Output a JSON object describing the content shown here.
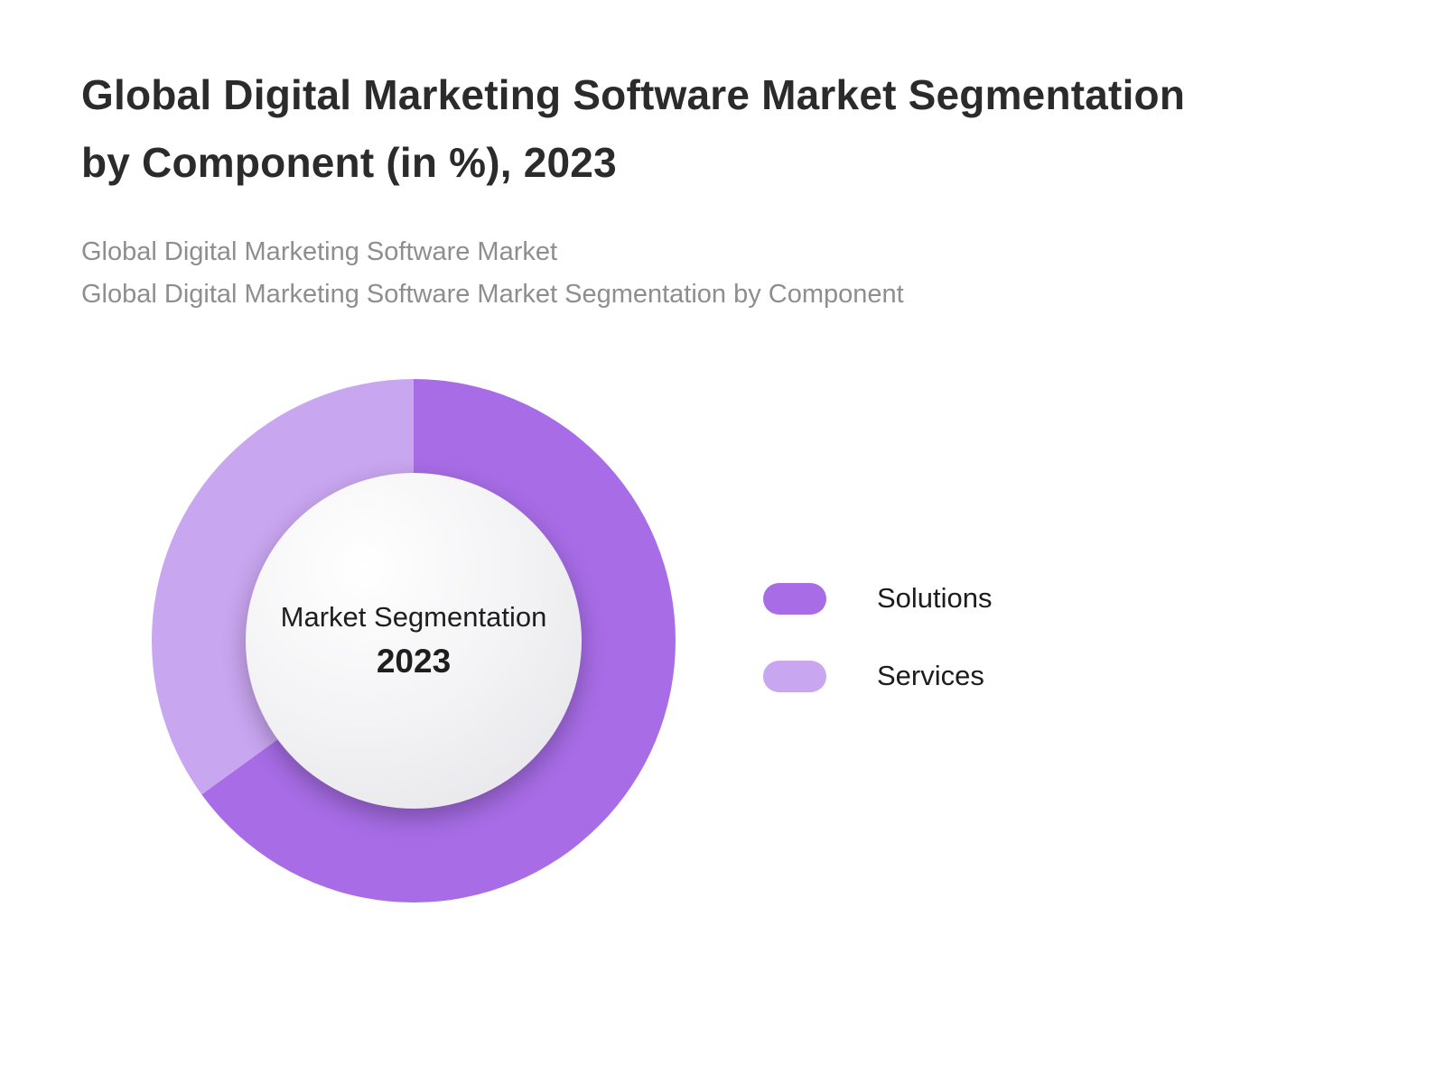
{
  "header": {
    "title_lines": [
      "Global Digital Marketing Software Market Segmentation",
      "by Component (in %), 2023"
    ],
    "subtitle_lines": [
      "Global Digital Marketing Software Market",
      "Global Digital Marketing Software Market Segmentation by Component"
    ]
  },
  "chart_data": {
    "type": "pie",
    "subtype": "donut",
    "title": "Global Digital Marketing Software Market Segmentation by Component (in %), 2023",
    "categories": [
      "Solutions",
      "Services"
    ],
    "values": [
      65,
      35
    ],
    "colors": [
      "#a76ce6",
      "#c9a6f0"
    ],
    "start_angle_deg": 0,
    "direction": "clockwise",
    "center_label": "Market Segmentation",
    "center_sublabel": "2023",
    "legend_position": "right",
    "data_labels_shown": false
  }
}
